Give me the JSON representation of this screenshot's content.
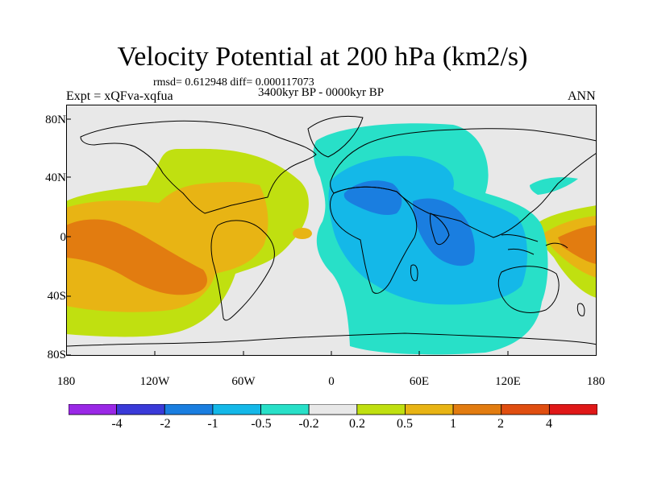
{
  "title": "Velocity Potential at 200 hPa (km2/s)",
  "stats": "rmsd= 0.612948 diff= 0.000117073",
  "experiment": "Expt = xQFva-xqfua",
  "period": "3400kyr BP - 0000kyr BP",
  "season": "ANN",
  "lat_labels": [
    "80N",
    "40N",
    "0",
    "40S",
    "80S"
  ],
  "lon_labels": [
    "180",
    "120W",
    "60W",
    "0",
    "60E",
    "120E",
    "180"
  ],
  "colorbar": {
    "colors": [
      "#9a28e6",
      "#3a3ad8",
      "#1a7ee0",
      "#14b8e8",
      "#28e0c8",
      "#e8e8e8",
      "#c0e010",
      "#e8b414",
      "#e27c10",
      "#e04e10",
      "#e01818"
    ],
    "labels": [
      "-4",
      "-2",
      "-1",
      "-0.5",
      "-0.2",
      "0.2",
      "0.5",
      "1",
      "2",
      "4"
    ]
  },
  "map_colors": {
    "background": "#e8e8e8",
    "pos_0_2": "#c0e010",
    "pos_0_5": "#e8b414",
    "pos_1": "#e27c10",
    "neg_0_2": "#28e0c8",
    "neg_0_5": "#14b8e8",
    "neg_1": "#1a7ee0"
  }
}
